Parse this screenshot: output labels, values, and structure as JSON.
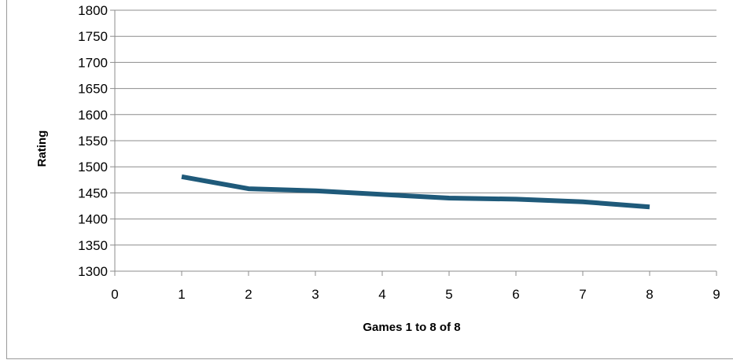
{
  "chart_data": {
    "type": "line",
    "title": "",
    "xlabel": "Games 1 to 8 of 8",
    "ylabel": "Rating",
    "xlim": [
      0,
      9
    ],
    "ylim": [
      1300,
      1800
    ],
    "xticks": [
      0,
      1,
      2,
      3,
      4,
      5,
      6,
      7,
      8,
      9
    ],
    "yticks": [
      1300,
      1350,
      1400,
      1450,
      1500,
      1550,
      1600,
      1650,
      1700,
      1750,
      1800
    ],
    "grid": true,
    "legend": "none",
    "series": [
      {
        "x": [
          1,
          2,
          3,
          4,
          5,
          6,
          7,
          8
        ],
        "values": [
          1481,
          1458,
          1454,
          1447,
          1440,
          1438,
          1433,
          1423
        ],
        "color": "#1f5a7a"
      }
    ]
  }
}
